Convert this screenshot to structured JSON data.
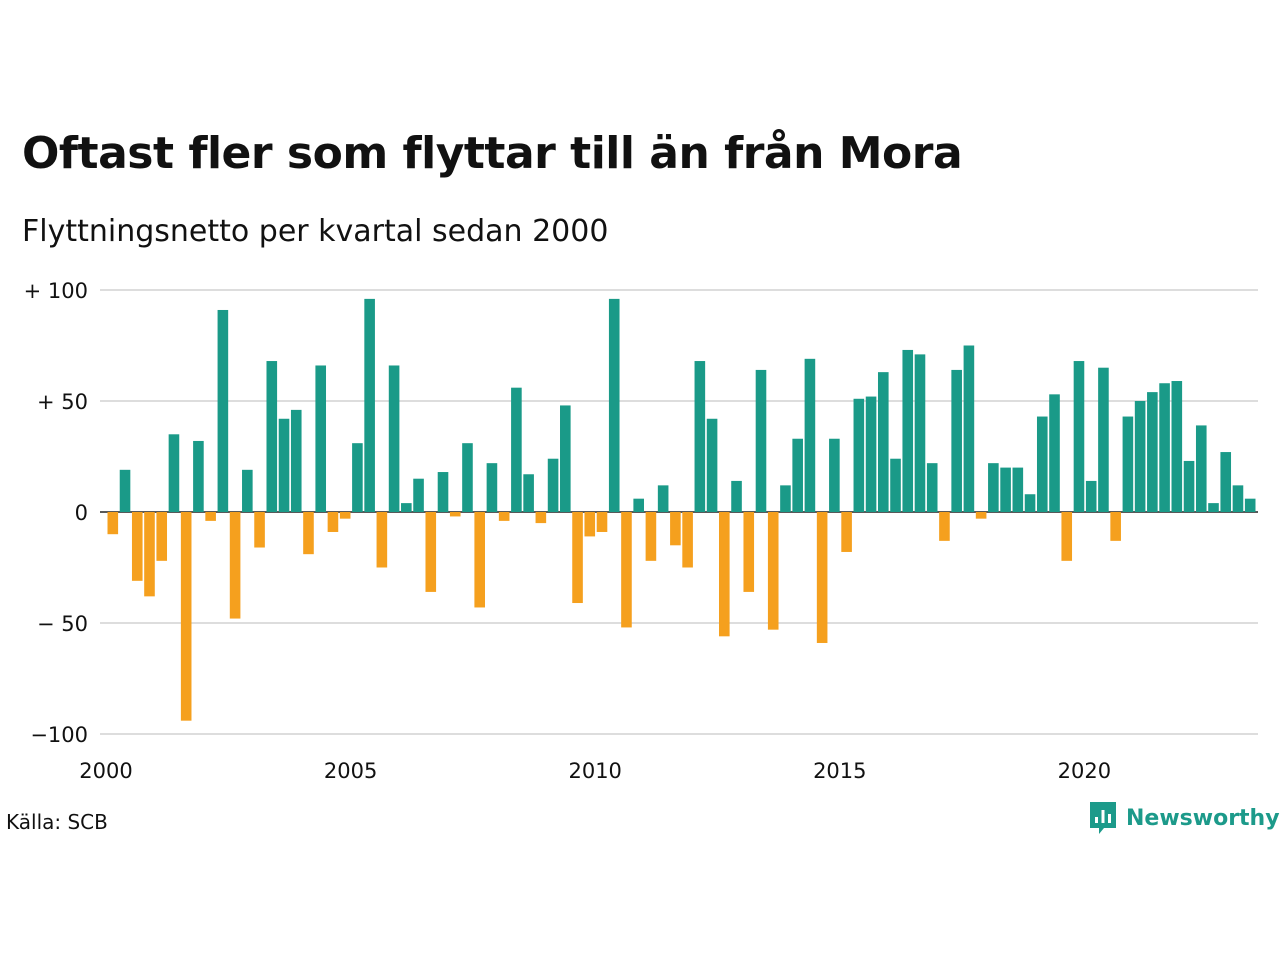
{
  "header": {
    "title": "Oftast fler som flyttar till än från Mora",
    "subtitle": "Flyttningsnetto per kvartal sedan 2000"
  },
  "footer": {
    "source": "Källa: SCB",
    "brand": "Newsworthy"
  },
  "colors": {
    "positive": "#1a9a88",
    "negative": "#f5a01e",
    "grid": "#dddddd",
    "brand": "#1c9a8a"
  },
  "chart_data": {
    "type": "bar",
    "title": "Oftast fler som flyttar till än från Mora",
    "subtitle": "Flyttningsnetto per kvartal sedan 2000",
    "xlabel": "",
    "ylabel": "",
    "ylim": [
      -100,
      100
    ],
    "y_ticks": [
      {
        "value": 100,
        "label": "+ 100"
      },
      {
        "value": 50,
        "label": "+  50"
      },
      {
        "value": 0,
        "label": "0"
      },
      {
        "value": -50,
        "label": "− 50"
      },
      {
        "value": -100,
        "label": "−100"
      }
    ],
    "x_ticks": [
      {
        "year": 2000,
        "label": "2000"
      },
      {
        "year": 2005,
        "label": "2005"
      },
      {
        "year": 2010,
        "label": "2010"
      },
      {
        "year": 2015,
        "label": "2015"
      },
      {
        "year": 2020,
        "label": "2020"
      }
    ],
    "grid": true,
    "legend": "none",
    "start_year": 2000,
    "categories": [
      "2000 K1",
      "2000 K2",
      "2000 K3",
      "2000 K4",
      "2001 K1",
      "2001 K2",
      "2001 K3",
      "2001 K4",
      "2002 K1",
      "2002 K2",
      "2002 K3",
      "2002 K4",
      "2003 K1",
      "2003 K2",
      "2003 K3",
      "2003 K4",
      "2004 K1",
      "2004 K2",
      "2004 K3",
      "2004 K4",
      "2005 K1",
      "2005 K2",
      "2005 K3",
      "2005 K4",
      "2006 K1",
      "2006 K2",
      "2006 K3",
      "2006 K4",
      "2007 K1",
      "2007 K2",
      "2007 K3",
      "2007 K4",
      "2008 K1",
      "2008 K2",
      "2008 K3",
      "2008 K4",
      "2009 K1",
      "2009 K2",
      "2009 K3",
      "2009 K4",
      "2010 K1",
      "2010 K2",
      "2010 K3",
      "2010 K4",
      "2011 K1",
      "2011 K2",
      "2011 K3",
      "2011 K4",
      "2012 K1",
      "2012 K2",
      "2012 K3",
      "2012 K4",
      "2013 K1",
      "2013 K2",
      "2013 K3",
      "2013 K4",
      "2014 K1",
      "2014 K2",
      "2014 K3",
      "2014 K4",
      "2015 K1",
      "2015 K2",
      "2015 K3",
      "2015 K4",
      "2016 K1",
      "2016 K2",
      "2016 K3",
      "2016 K4",
      "2017 K1",
      "2017 K2",
      "2017 K3",
      "2017 K4",
      "2018 K1",
      "2018 K2",
      "2018 K3",
      "2018 K4",
      "2019 K1",
      "2019 K2",
      "2019 K3",
      "2019 K4",
      "2020 K1",
      "2020 K2",
      "2020 K3",
      "2020 K4",
      "2021 K1",
      "2021 K2",
      "2021 K3",
      "2021 K4",
      "2022 K1",
      "2022 K2",
      "2022 K3",
      "2022 K4",
      "2023 K1",
      "2023 K2",
      "2023 K3",
      "2023 K4"
    ],
    "values": [
      -10,
      19,
      -31,
      -38,
      -22,
      35,
      -94,
      32,
      -4,
      91,
      -48,
      19,
      -16,
      68,
      42,
      46,
      -19,
      66,
      -9,
      -3,
      31,
      96,
      -25,
      66,
      4,
      15,
      -36,
      18,
      -2,
      31,
      -43,
      22,
      -4,
      56,
      17,
      -5,
      24,
      48,
      -41,
      -11,
      -9,
      96,
      -52,
      6,
      -22,
      12,
      -15,
      -25,
      68,
      42,
      -56,
      14,
      -36,
      64,
      -53,
      12,
      33,
      69,
      -59,
      33,
      -18,
      51,
      52,
      63,
      24,
      73,
      71,
      22,
      -13,
      64,
      75,
      -3,
      22,
      20,
      20,
      8,
      43,
      53,
      -22,
      68,
      14,
      65,
      -13,
      43,
      50,
      54,
      58,
      59,
      23,
      39,
      4,
      27,
      12,
      6,
      null,
      null
    ]
  }
}
